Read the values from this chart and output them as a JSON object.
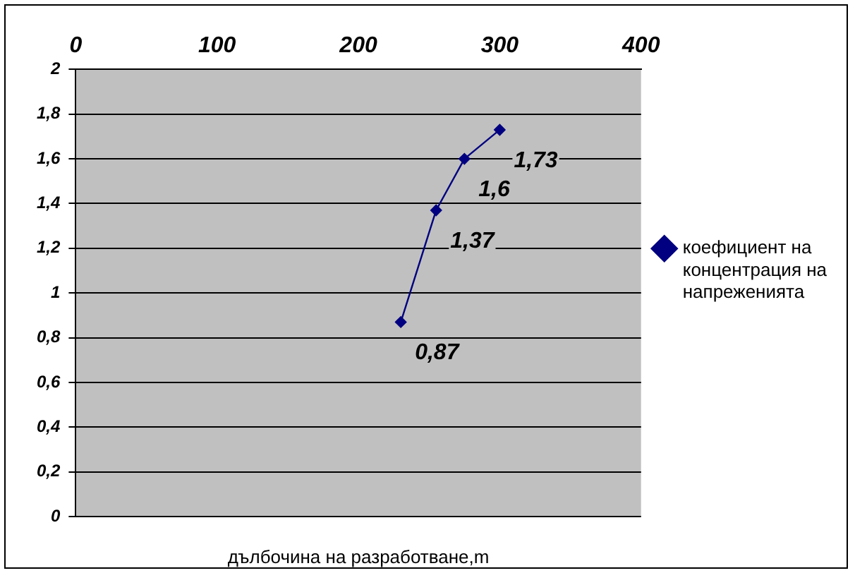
{
  "chart_data": {
    "type": "line",
    "xlabel": "дълбочина на разработване,m",
    "x": [
      230,
      255,
      275,
      300
    ],
    "series": [
      {
        "name": "коефициент на концентрация на напреженията",
        "color": "#000080",
        "values": [
          0.87,
          1.37,
          1.6,
          1.73
        ],
        "value_labels": [
          "0,87",
          "1,37",
          "1,6",
          "1,73"
        ]
      }
    ],
    "xlim": [
      0,
      400
    ],
    "xticks": [
      0,
      100,
      200,
      300,
      400
    ],
    "ylim": [
      0,
      2
    ],
    "yticks": [
      0,
      {
        "value": 0.2,
        "label": "0,2"
      },
      {
        "value": 0.4,
        "label": "0,4"
      },
      {
        "value": 0.6,
        "label": "0,6"
      },
      {
        "value": 0.8,
        "label": "0,8"
      },
      1,
      {
        "value": 1.2,
        "label": "1,2"
      },
      {
        "value": 1.4,
        "label": "1,4"
      },
      {
        "value": 1.6,
        "label": "1,6"
      },
      {
        "value": 1.8,
        "label": "1,8"
      },
      2
    ],
    "grid": "y",
    "legend": "right",
    "marker": "diamond",
    "line_style": "solid"
  }
}
